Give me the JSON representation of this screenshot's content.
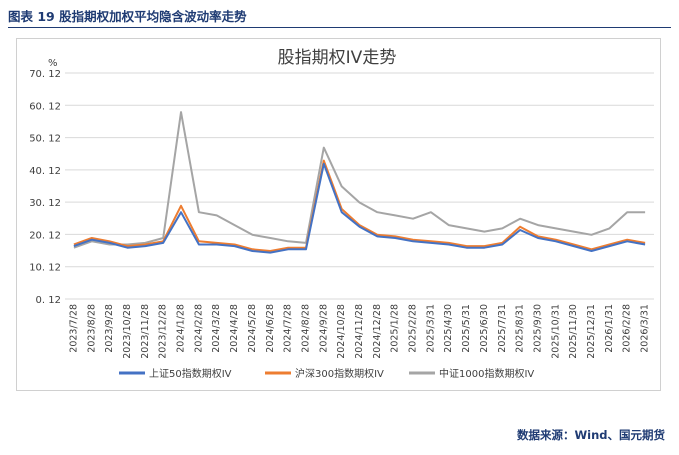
{
  "figure": {
    "caption": "图表 19  股指期权加权平均隐含波动率走势",
    "source": "数据来源：Wind、国元期货"
  },
  "chart_data": {
    "type": "line",
    "title": "股指期权IV走势",
    "ylabel": "%",
    "xlabel": "",
    "ylim": [
      0.12,
      70.12
    ],
    "yticks": [
      0.12,
      10.12,
      20.12,
      30.12,
      40.12,
      50.12,
      60.12,
      70.12
    ],
    "ytick_labels": [
      "0. 12",
      "10. 12",
      "20. 12",
      "30. 12",
      "40. 12",
      "50. 12",
      "60. 12",
      "70. 12"
    ],
    "grid": "horizontal",
    "legend_position": "bottom",
    "x_tick_labels": [
      "2023/7/28",
      "2023/8/28",
      "2023/9/28",
      "2023/10/28",
      "2023/11/28",
      "2023/12/28",
      "2024/1/28",
      "2024/2/28",
      "2024/3/28",
      "2024/4/28",
      "2024/5/28",
      "2024/6/28",
      "2024/7/28",
      "2024/8/28",
      "2024/9/28",
      "2024/10/28",
      "2024/11/28",
      "2024/12/28",
      "2025/1/28",
      "2025/2/28",
      "2025/3/31",
      "2025/4/30",
      "2025/5/31",
      "2025/6/30",
      "2025/7/31",
      "2025/8/31",
      "2025/9/30",
      "2025/10/31",
      "2025/11/30",
      "2025/12/31",
      "2026/1/31",
      "2026/2/28",
      "2026/3/31"
    ],
    "x": [
      "2023/7/28",
      "2023/8/28",
      "2023/9/28",
      "2023/10/28",
      "2023/11/28",
      "2023/12/28",
      "2024/1/28",
      "2024/2/28",
      "2024/3/28",
      "2024/4/28",
      "2024/5/28",
      "2024/6/28",
      "2024/7/28",
      "2024/8/28",
      "2024/9/28",
      "2024/10/28",
      "2024/11/28",
      "2024/12/28",
      "2025/1/28",
      "2025/2/28",
      "2025/3/31",
      "2025/4/30",
      "2025/5/31",
      "2025/6/30",
      "2025/7/31",
      "2025/8/31",
      "2025/9/30",
      "2025/10/31",
      "2025/11/30",
      "2025/12/31",
      "2026/1/31",
      "2026/2/28",
      "2026/3/31"
    ],
    "series": [
      {
        "name": "上证50指数期权IV",
        "color": "#4472c4",
        "values": [
          16.5,
          18.5,
          17.5,
          16.0,
          16.5,
          17.5,
          27.0,
          17.0,
          17.0,
          16.5,
          15.0,
          14.5,
          15.5,
          15.5,
          42.0,
          27.0,
          22.5,
          19.5,
          19.0,
          18.0,
          17.5,
          17.0,
          16.0,
          16.0,
          17.0,
          21.5,
          19.0,
          18.0,
          16.5,
          15.0,
          16.5,
          18.0,
          17.0
        ]
      },
      {
        "name": "沪深300指数期权IV",
        "color": "#ed7d31",
        "values": [
          17.0,
          19.0,
          18.0,
          16.5,
          17.0,
          18.0,
          29.0,
          18.0,
          17.5,
          17.0,
          15.5,
          15.0,
          16.0,
          16.0,
          43.0,
          28.0,
          23.0,
          20.0,
          19.5,
          18.5,
          18.0,
          17.5,
          16.5,
          16.5,
          17.5,
          22.5,
          19.5,
          18.5,
          17.0,
          15.5,
          17.0,
          18.5,
          17.5
        ]
      },
      {
        "name": "中证1000指数期权IV",
        "color": "#a5a5a5",
        "values": [
          16.0,
          18.0,
          17.0,
          17.0,
          17.5,
          19.0,
          58.0,
          27.0,
          26.0,
          23.0,
          20.0,
          19.0,
          18.0,
          17.5,
          47.0,
          35.0,
          30.0,
          27.0,
          26.0,
          25.0,
          27.0,
          23.0,
          22.0,
          21.0,
          22.0,
          25.0,
          23.0,
          22.0,
          21.0,
          20.0,
          22.0,
          27.0,
          27.0
        ]
      }
    ]
  }
}
